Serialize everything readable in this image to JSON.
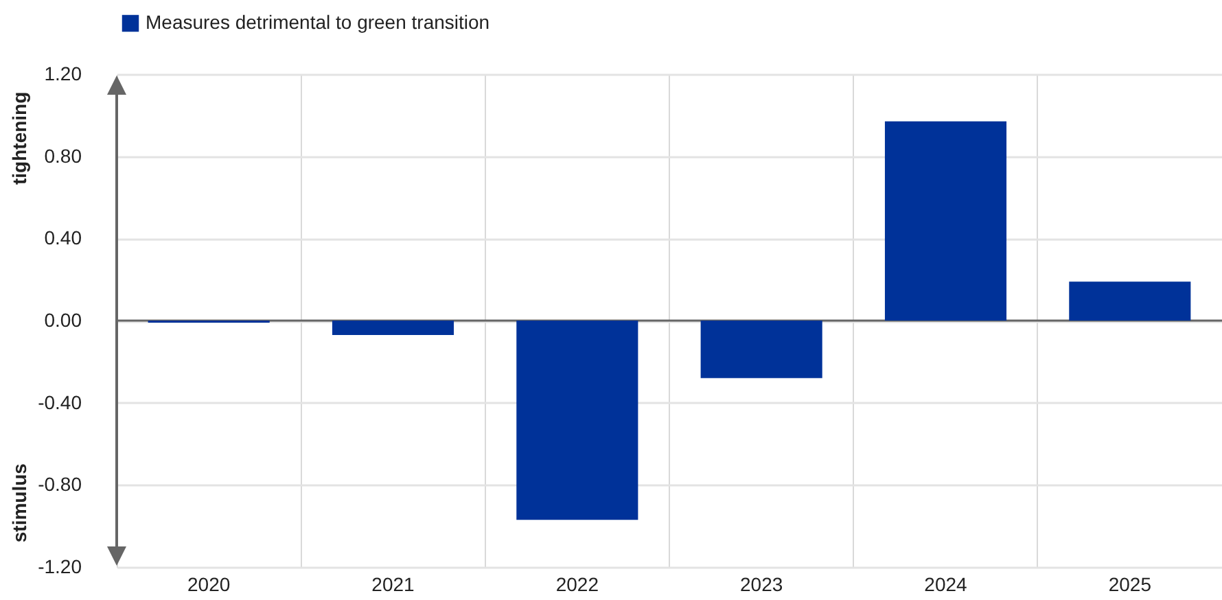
{
  "chart_data": {
    "type": "bar",
    "categories": [
      "2020",
      "2021",
      "2022",
      "2023",
      "2024",
      "2025"
    ],
    "series": [
      {
        "name": "Measures detrimental to green transition",
        "color": "#003299",
        "values": [
          -0.01,
          -0.07,
          -0.97,
          -0.28,
          0.97,
          0.19
        ]
      }
    ],
    "ylim": [
      -1.2,
      1.2
    ],
    "yticks": [
      {
        "value": -1.2,
        "label": "-1.20"
      },
      {
        "value": -0.8,
        "label": "-0.80"
      },
      {
        "value": -0.4,
        "label": "-0.40"
      },
      {
        "value": 0,
        "label": "0.00"
      },
      {
        "value": 0.4,
        "label": "0.40"
      },
      {
        "value": 0.8,
        "label": "0.80"
      },
      {
        "value": 1.2,
        "label": "1.20"
      }
    ],
    "annotations": [
      "tightening",
      "stimulus"
    ],
    "ref_lines": [
      {
        "axis": "y",
        "value": 0,
        "color": "#666666"
      }
    ],
    "grid": true,
    "legend": "top left"
  }
}
